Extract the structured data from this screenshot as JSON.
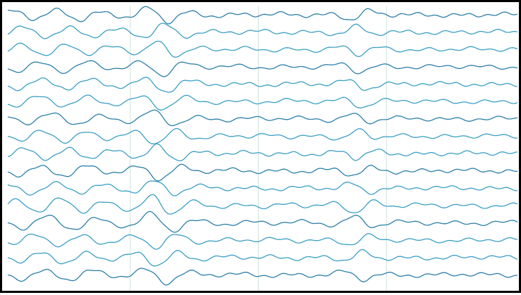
{
  "eeg": {
    "channel_count": 16,
    "epoch_count": 4,
    "colors": {
      "background": "#ffffff",
      "border": "#000000",
      "trace": "#3a9fc4",
      "trace_dark": "#2b7fa8",
      "gridline": "#cfe3dc"
    }
  }
}
